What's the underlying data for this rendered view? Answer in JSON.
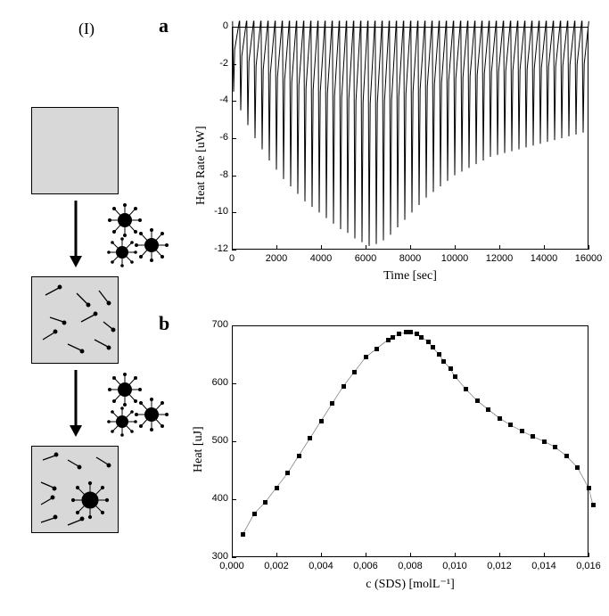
{
  "panel_I_label": "(I)",
  "panel_a_letter": "a",
  "panel_b_letter": "b",
  "chart_a": {
    "type": "line-calorimetry",
    "xlabel": "Time [sec]",
    "ylabel": "Heat Rate [uW]",
    "xlim": [
      0,
      16000
    ],
    "ylim": [
      -12,
      0
    ],
    "xticks": [
      0,
      2000,
      4000,
      6000,
      8000,
      10000,
      12000,
      14000,
      16000
    ],
    "yticks": [
      0,
      -2,
      -4,
      -6,
      -8,
      -10,
      -12
    ],
    "ytick_labels": [
      "0",
      "-2",
      "-4",
      "-6",
      "-8",
      "-10",
      "-12"
    ],
    "peak_depths": [
      -3.5,
      -4.5,
      -5.3,
      -6.0,
      -6.6,
      -7.2,
      -7.7,
      -8.2,
      -8.6,
      -9.0,
      -9.4,
      -9.7,
      -10.0,
      -10.3,
      -10.6,
      -10.9,
      -11.1,
      -11.4,
      -11.6,
      -11.8,
      -11.7,
      -11.5,
      -11.2,
      -10.8,
      -10.4,
      -10.0,
      -9.6,
      -9.2,
      -8.9,
      -8.6,
      -8.3,
      -8.0,
      -7.8,
      -7.6,
      -7.4,
      -7.2,
      -7.0,
      -6.9,
      -6.8,
      -6.7,
      -6.6,
      -6.5,
      -6.4,
      -6.3,
      -6.2,
      -6.1,
      -6.0,
      -5.9,
      -5.8,
      -5.7
    ],
    "baseline": 0.3,
    "n_injections": 50,
    "label_fontsize": 14,
    "tick_fontsize": 11,
    "line_color": "#000000",
    "background_color": "#ffffff",
    "line_width": 1
  },
  "chart_b": {
    "type": "scatter",
    "xlabel": "c (SDS) [molL⁻¹]",
    "ylabel": "Heat [uJ]",
    "xlim": [
      0.0,
      0.016
    ],
    "ylim": [
      300,
      700
    ],
    "xticks": [
      0.0,
      0.002,
      0.004,
      0.006,
      0.008,
      0.01,
      0.012,
      0.014,
      0.016
    ],
    "xtick_labels": [
      "0,000",
      "0,002",
      "0,004",
      "0,006",
      "0,008",
      "0,010",
      "0,012",
      "0,014",
      "0,016"
    ],
    "yticks": [
      300,
      400,
      500,
      600,
      700
    ],
    "points_x": [
      0.0005,
      0.001,
      0.0015,
      0.002,
      0.0025,
      0.003,
      0.0035,
      0.004,
      0.0045,
      0.005,
      0.0055,
      0.006,
      0.0065,
      0.007,
      0.0072,
      0.0075,
      0.0078,
      0.008,
      0.0083,
      0.0085,
      0.0088,
      0.009,
      0.0093,
      0.0095,
      0.0098,
      0.01,
      0.0105,
      0.011,
      0.0115,
      0.012,
      0.0125,
      0.013,
      0.0135,
      0.014,
      0.0145,
      0.015,
      0.0155,
      0.016,
      0.0162
    ],
    "points_y": [
      340,
      375,
      395,
      420,
      445,
      475,
      505,
      535,
      565,
      595,
      620,
      645,
      660,
      675,
      680,
      685,
      688,
      688,
      685,
      680,
      672,
      662,
      650,
      638,
      625,
      612,
      590,
      570,
      555,
      540,
      528,
      518,
      508,
      500,
      490,
      475,
      455,
      420,
      390
    ],
    "marker_color": "#000000",
    "marker_size": 5,
    "marker_shape": "square",
    "label_fontsize": 14,
    "tick_fontsize": 11,
    "background_color": "#ffffff"
  },
  "diagram": {
    "box_fill": "#d8d8d8",
    "box_border": "#000000",
    "note": "three gray boxes: empty → monomers → monomers+micelle; micelle clusters beside arrows"
  },
  "colors": {
    "text": "#000000",
    "background": "#ffffff"
  },
  "fonts": {
    "serif": "Times New Roman",
    "panel_letter_size": 22,
    "roman_numeral_size": 18
  }
}
